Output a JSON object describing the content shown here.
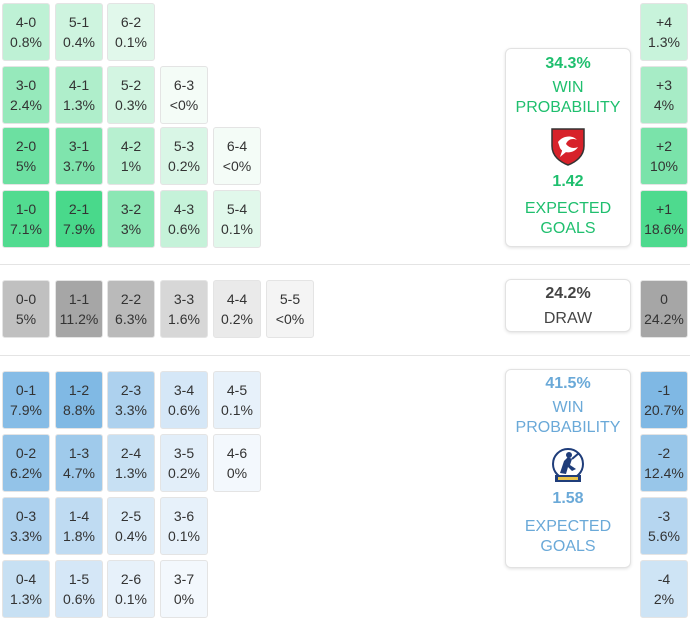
{
  "colors": {
    "home_accent": "#1fbf6e",
    "away_accent": "#6aa9d8",
    "draw_text": "#444444"
  },
  "home": {
    "win_pct": "34.3%",
    "win_label_1": "WIN",
    "win_label_2": "PROBABILITY",
    "xg": "1.42",
    "xg_label_1": "EXPECTED",
    "xg_label_2": "GOALS",
    "crest_icon": "cheltenham-crest-icon"
  },
  "draw": {
    "pct": "24.2%",
    "label": "DRAW"
  },
  "away": {
    "win_pct": "41.5%",
    "win_label_1": "WIN",
    "win_label_2": "PROBABILITY",
    "xg": "1.58",
    "xg_label_1": "EXPECTED",
    "xg_label_2": "GOALS",
    "crest_icon": "bristol-rovers-crest-icon"
  },
  "home_wins": [
    [
      {
        "score": "4-0",
        "pct": "0.8%"
      },
      {
        "score": "5-1",
        "pct": "0.4%"
      },
      {
        "score": "6-2",
        "pct": "0.1%"
      }
    ],
    [
      {
        "score": "3-0",
        "pct": "2.4%"
      },
      {
        "score": "4-1",
        "pct": "1.3%"
      },
      {
        "score": "5-2",
        "pct": "0.3%"
      },
      {
        "score": "6-3",
        "pct": "<0%"
      }
    ],
    [
      {
        "score": "2-0",
        "pct": "5%"
      },
      {
        "score": "3-1",
        "pct": "3.7%"
      },
      {
        "score": "4-2",
        "pct": "1%"
      },
      {
        "score": "5-3",
        "pct": "0.2%"
      },
      {
        "score": "6-4",
        "pct": "<0%"
      }
    ],
    [
      {
        "score": "1-0",
        "pct": "7.1%"
      },
      {
        "score": "2-1",
        "pct": "7.9%"
      },
      {
        "score": "3-2",
        "pct": "3%"
      },
      {
        "score": "4-3",
        "pct": "0.6%"
      },
      {
        "score": "5-4",
        "pct": "0.1%"
      }
    ]
  ],
  "draws": [
    {
      "score": "0-0",
      "pct": "5%"
    },
    {
      "score": "1-1",
      "pct": "11.2%"
    },
    {
      "score": "2-2",
      "pct": "6.3%"
    },
    {
      "score": "3-3",
      "pct": "1.6%"
    },
    {
      "score": "4-4",
      "pct": "0.2%"
    },
    {
      "score": "5-5",
      "pct": "<0%"
    }
  ],
  "away_wins": [
    [
      {
        "score": "0-1",
        "pct": "7.9%"
      },
      {
        "score": "1-2",
        "pct": "8.8%"
      },
      {
        "score": "2-3",
        "pct": "3.3%"
      },
      {
        "score": "3-4",
        "pct": "0.6%"
      },
      {
        "score": "4-5",
        "pct": "0.1%"
      }
    ],
    [
      {
        "score": "0-2",
        "pct": "6.2%"
      },
      {
        "score": "1-3",
        "pct": "4.7%"
      },
      {
        "score": "2-4",
        "pct": "1.3%"
      },
      {
        "score": "3-5",
        "pct": "0.2%"
      },
      {
        "score": "4-6",
        "pct": "0%"
      }
    ],
    [
      {
        "score": "0-3",
        "pct": "3.3%"
      },
      {
        "score": "1-4",
        "pct": "1.8%"
      },
      {
        "score": "2-5",
        "pct": "0.4%"
      },
      {
        "score": "3-6",
        "pct": "0.1%"
      }
    ],
    [
      {
        "score": "0-4",
        "pct": "1.3%"
      },
      {
        "score": "1-5",
        "pct": "0.6%"
      },
      {
        "score": "2-6",
        "pct": "0.1%"
      },
      {
        "score": "3-7",
        "pct": "0%"
      }
    ]
  ],
  "margins": [
    {
      "label": "+4",
      "pct": "1.3%",
      "type": "home"
    },
    {
      "label": "+3",
      "pct": "4%",
      "type": "home"
    },
    {
      "label": "+2",
      "pct": "10%",
      "type": "home"
    },
    {
      "label": "+1",
      "pct": "18.6%",
      "type": "home"
    },
    {
      "label": "0",
      "pct": "24.2%",
      "type": "draw"
    },
    {
      "label": "-1",
      "pct": "20.7%",
      "type": "away"
    },
    {
      "label": "-2",
      "pct": "12.4%",
      "type": "away"
    },
    {
      "label": "-3",
      "pct": "5.6%",
      "type": "away"
    },
    {
      "label": "-4",
      "pct": "2%",
      "type": "away"
    }
  ]
}
